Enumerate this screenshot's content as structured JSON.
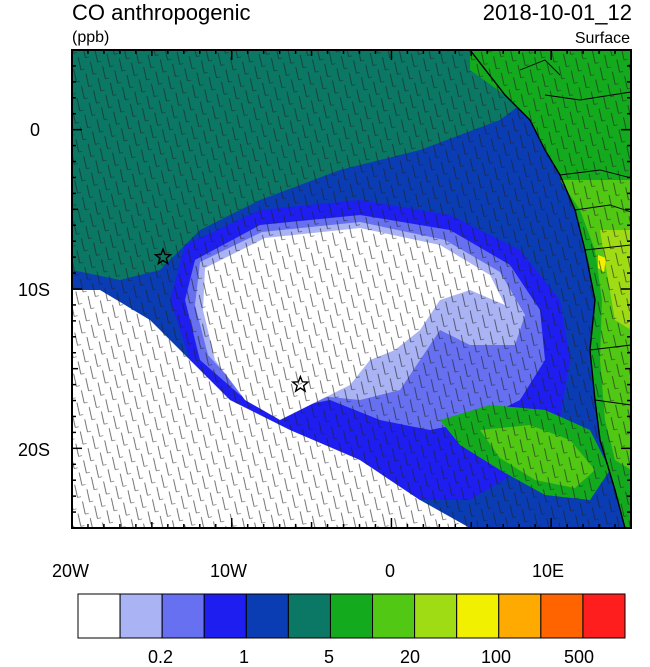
{
  "title": "CO anthropogenic",
  "datetime": "2018-10-01_12",
  "units": "(ppb)",
  "level": "Surface",
  "lon_ticks": [
    "20W",
    "10W",
    "0",
    "10E"
  ],
  "lat_ticks": [
    "0",
    "10S",
    "20S"
  ],
  "colorbar": {
    "colors": [
      "#ffffff",
      "#aab4f5",
      "#6670f0",
      "#1e1ef0",
      "#0a3cb4",
      "#0a7864",
      "#14aa1e",
      "#50c814",
      "#a0dc14",
      "#f0f000",
      "#ffaa00",
      "#ff6400",
      "#ff1e1e"
    ],
    "labels": [
      "0.2",
      "1",
      "5",
      "20",
      "100",
      "500"
    ]
  },
  "markers": [
    {
      "name": "star-marker-west",
      "lon": -14.3,
      "lat": -8.0
    },
    {
      "name": "star-marker-south",
      "lon": -5.7,
      "lat": -16.0
    }
  ]
}
